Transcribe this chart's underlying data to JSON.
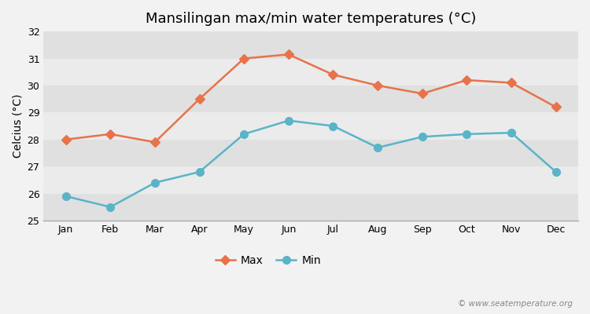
{
  "title": "Mansilingan max/min water temperatures (°C)",
  "ylabel": "Celcius (°C)",
  "months": [
    "Jan",
    "Feb",
    "Mar",
    "Apr",
    "May",
    "Jun",
    "Jul",
    "Aug",
    "Sep",
    "Oct",
    "Nov",
    "Dec"
  ],
  "max_temps": [
    28.0,
    28.2,
    27.9,
    29.5,
    31.0,
    31.15,
    30.4,
    30.0,
    29.7,
    30.2,
    30.1,
    29.2
  ],
  "min_temps": [
    25.9,
    25.5,
    26.4,
    26.8,
    28.2,
    28.7,
    28.5,
    27.7,
    28.1,
    28.2,
    28.25,
    26.8
  ],
  "max_color": "#e8724a",
  "min_color": "#5ab4c8",
  "bg_color": "#f2f2f2",
  "band_light": "#ebebeb",
  "band_dark": "#e0e0e0",
  "ylim": [
    25,
    32
  ],
  "yticks": [
    25,
    26,
    27,
    28,
    29,
    30,
    31,
    32
  ],
  "watermark": "© www.seatemperature.org",
  "title_fontsize": 13,
  "label_fontsize": 10,
  "tick_fontsize": 9,
  "legend_fontsize": 10,
  "max_marker": "D",
  "min_marker": "o",
  "max_markersize": 6,
  "min_markersize": 7,
  "linewidth": 1.8
}
